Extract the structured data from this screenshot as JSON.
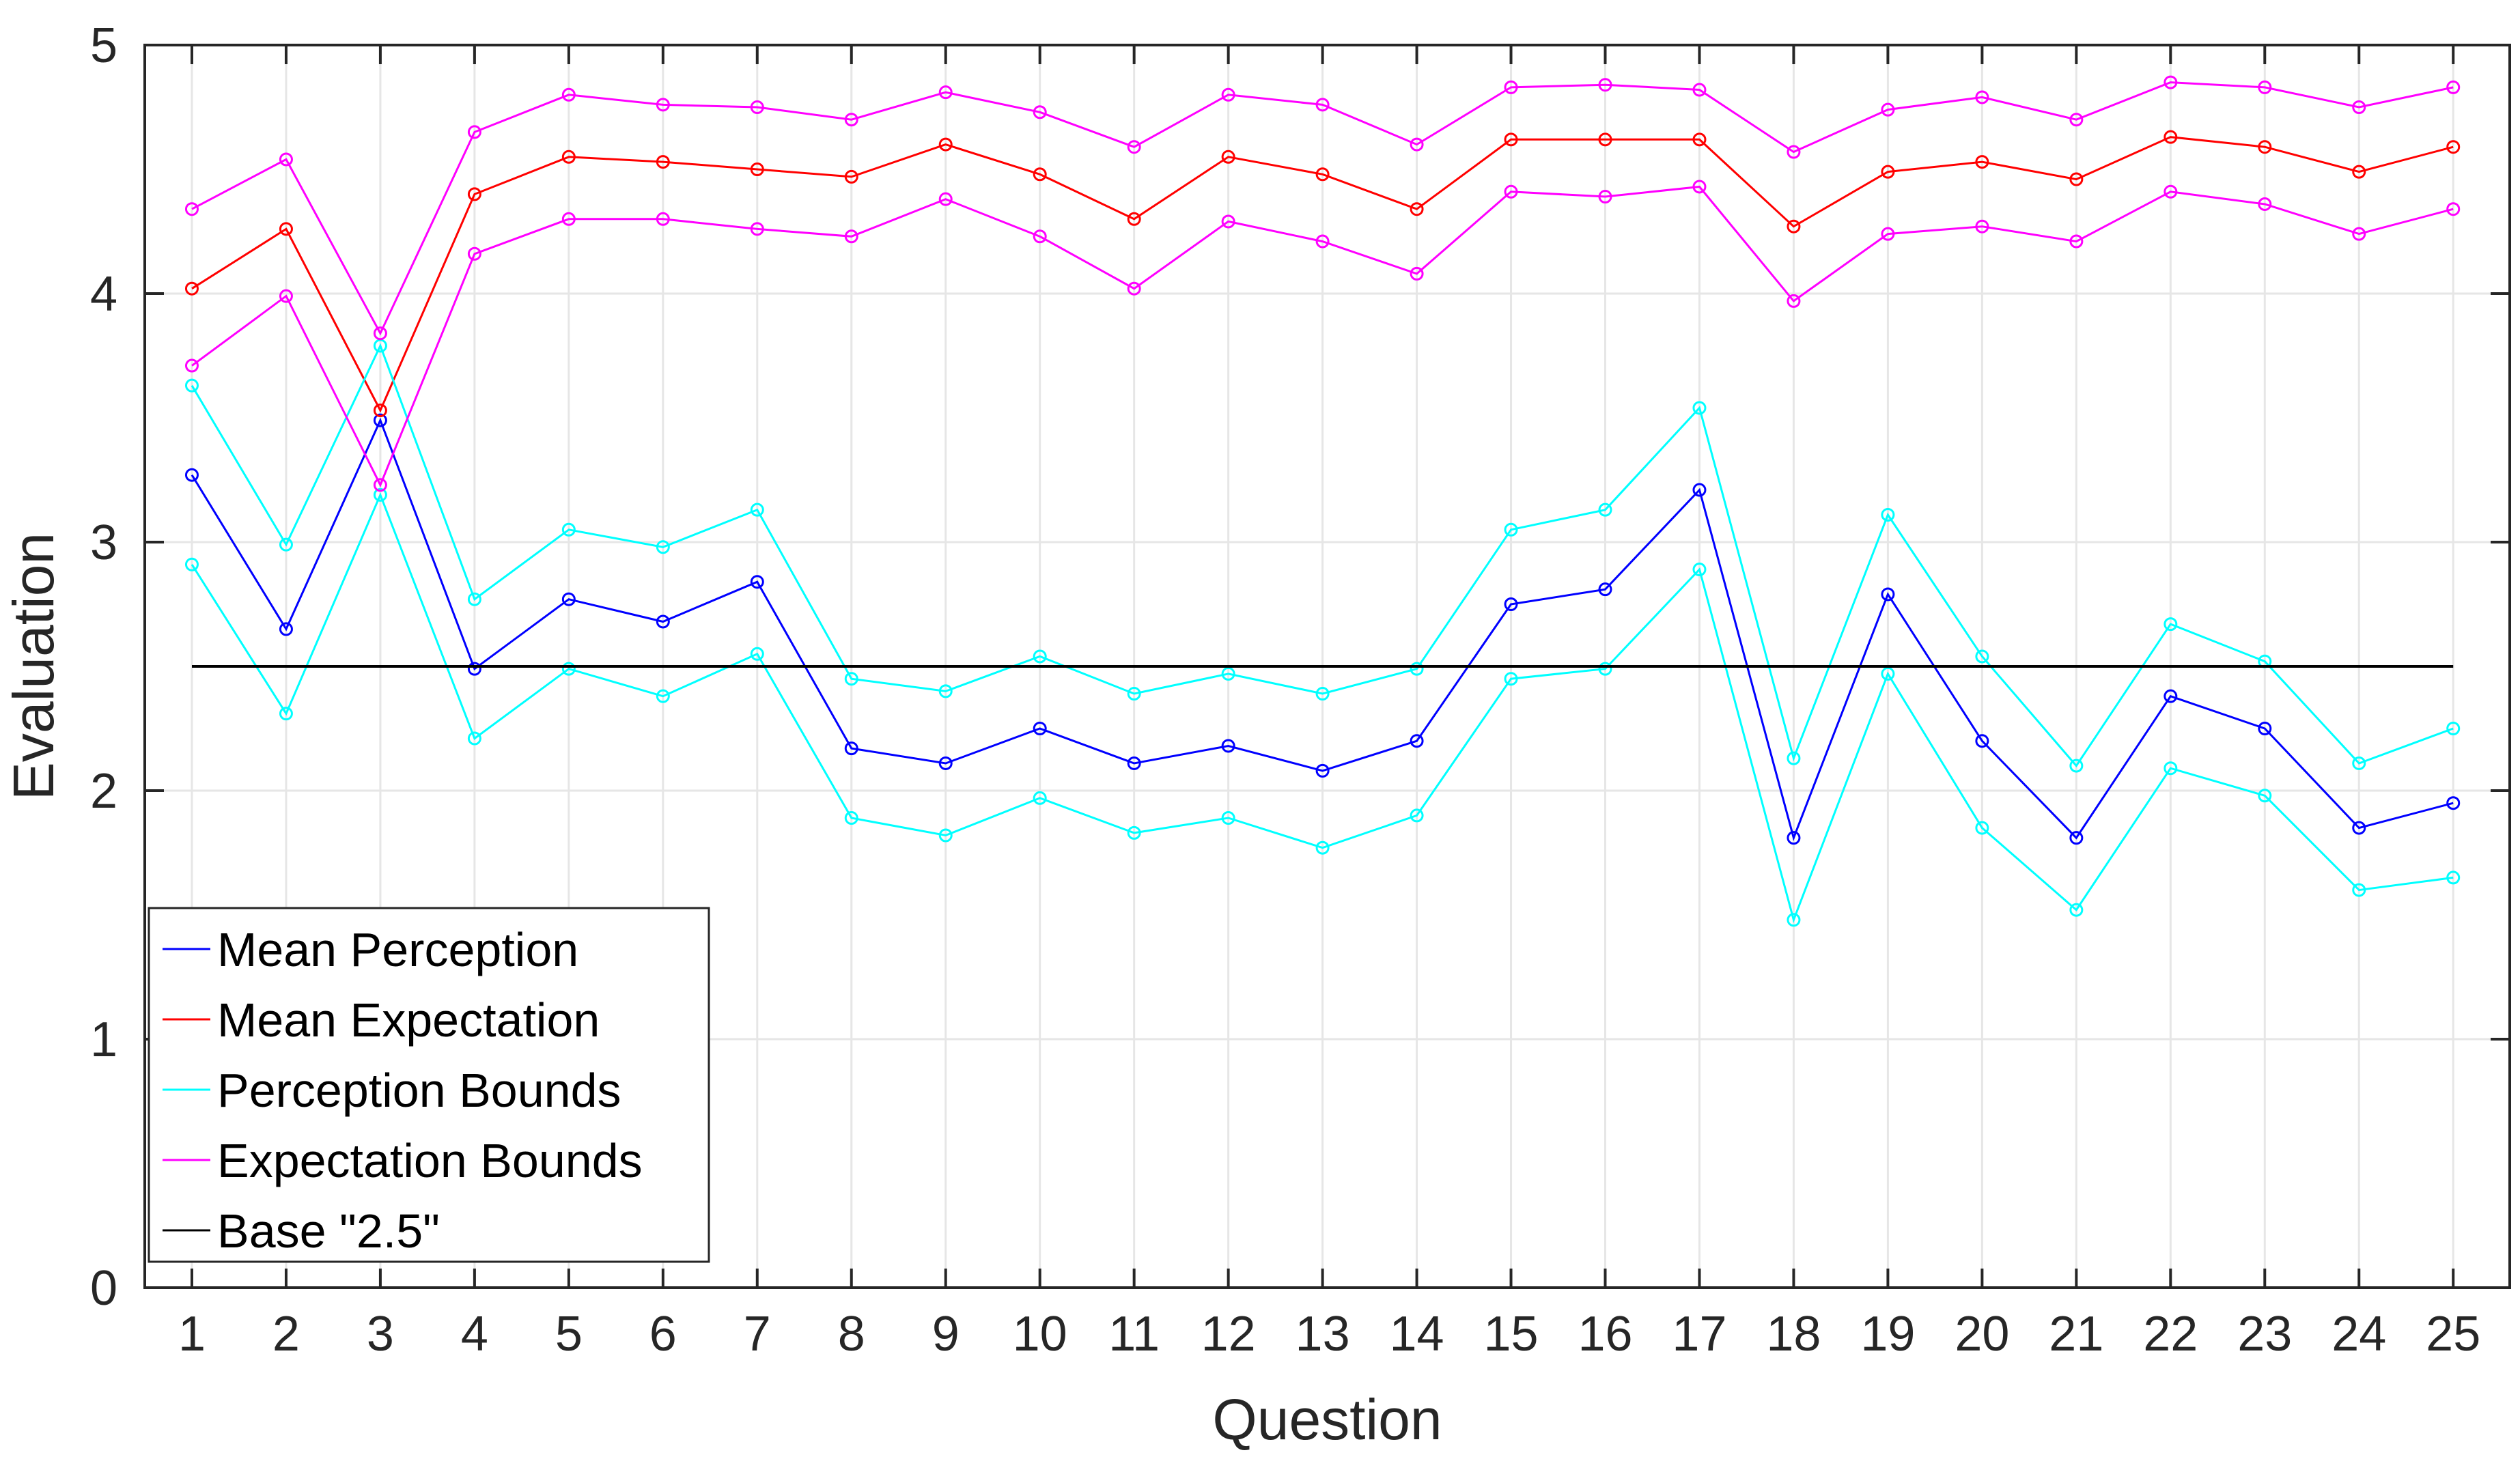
{
  "chart_data": {
    "type": "line",
    "title": "",
    "xlabel": "Question",
    "ylabel": "Evaluation",
    "xlim": [
      0.5,
      25.6
    ],
    "ylim": [
      0,
      5
    ],
    "grid": true,
    "legend_position": "bottom-left",
    "x": [
      1,
      2,
      3,
      4,
      5,
      6,
      7,
      8,
      9,
      10,
      11,
      12,
      13,
      14,
      15,
      16,
      17,
      18,
      19,
      20,
      21,
      22,
      23,
      24,
      25
    ],
    "x_tick_labels": [
      "1",
      "2",
      "3",
      "4",
      "5",
      "6",
      "7",
      "8",
      "9",
      "10",
      "11",
      "12",
      "13",
      "14",
      "15",
      "16",
      "17",
      "18",
      "19",
      "20",
      "21",
      "22",
      "23",
      "24",
      "25"
    ],
    "y_ticks": [
      0,
      1,
      2,
      3,
      4,
      5
    ],
    "y_tick_labels": [
      "0",
      "1",
      "2",
      "3",
      "4",
      "5"
    ],
    "series": [
      {
        "name": "Mean Perception",
        "color": "#0000ff",
        "markers": true,
        "values": [
          3.27,
          2.65,
          3.49,
          2.49,
          2.77,
          2.68,
          2.84,
          2.17,
          2.11,
          2.25,
          2.11,
          2.18,
          2.08,
          2.2,
          2.75,
          2.81,
          3.21,
          1.81,
          2.79,
          2.2,
          1.81,
          2.38,
          2.25,
          1.85,
          1.95
        ]
      },
      {
        "name": "Mean Expectation",
        "color": "#ff0000",
        "markers": true,
        "values": [
          4.02,
          4.26,
          3.53,
          4.4,
          4.55,
          4.53,
          4.5,
          4.47,
          4.6,
          4.48,
          4.3,
          4.55,
          4.48,
          4.34,
          4.62,
          4.62,
          4.62,
          4.27,
          4.49,
          4.53,
          4.46,
          4.63,
          4.59,
          4.49,
          4.59
        ]
      },
      {
        "name": "Perception Bounds",
        "color": "#00ffff",
        "markers": true,
        "values": [
          3.63,
          2.99,
          3.79,
          2.77,
          3.05,
          2.98,
          3.13,
          2.45,
          2.4,
          2.54,
          2.39,
          2.47,
          2.39,
          2.49,
          3.05,
          3.13,
          3.54,
          2.13,
          3.11,
          2.54,
          2.1,
          2.67,
          2.52,
          2.11,
          2.25
        ]
      },
      {
        "name": "Perception Bounds (lower)",
        "legend": false,
        "color": "#00ffff",
        "markers": true,
        "values": [
          2.91,
          2.31,
          3.19,
          2.21,
          2.49,
          2.38,
          2.55,
          1.89,
          1.82,
          1.97,
          1.83,
          1.89,
          1.77,
          1.9,
          2.45,
          2.49,
          2.89,
          1.48,
          2.47,
          1.85,
          1.52,
          2.09,
          1.98,
          1.6,
          1.65
        ]
      },
      {
        "name": "Expectation Bounds",
        "color": "#ff00ff",
        "markers": true,
        "values": [
          4.34,
          4.54,
          3.84,
          4.65,
          4.8,
          4.76,
          4.75,
          4.7,
          4.81,
          4.73,
          4.59,
          4.8,
          4.76,
          4.6,
          4.83,
          4.84,
          4.82,
          4.57,
          4.74,
          4.79,
          4.7,
          4.85,
          4.83,
          4.75,
          4.83
        ]
      },
      {
        "name": "Expectation Bounds (lower)",
        "legend": false,
        "color": "#ff00ff",
        "markers": true,
        "values": [
          3.71,
          3.99,
          3.23,
          4.16,
          4.3,
          4.3,
          4.26,
          4.23,
          4.38,
          4.23,
          4.02,
          4.29,
          4.21,
          4.08,
          4.41,
          4.39,
          4.43,
          3.97,
          4.24,
          4.27,
          4.21,
          4.41,
          4.36,
          4.24,
          4.34
        ]
      },
      {
        "name": "Base \"2.5\"",
        "color": "#000000",
        "markers": false,
        "values": [
          2.5,
          2.5,
          2.5,
          2.5,
          2.5,
          2.5,
          2.5,
          2.5,
          2.5,
          2.5,
          2.5,
          2.5,
          2.5,
          2.5,
          2.5,
          2.5,
          2.5,
          2.5,
          2.5,
          2.5,
          2.5,
          2.5,
          2.5,
          2.5,
          2.5
        ]
      }
    ],
    "legend_entries": [
      {
        "label": "Mean Perception",
        "color": "#0000ff"
      },
      {
        "label": "Mean Expectation",
        "color": "#ff0000"
      },
      {
        "label": "Perception Bounds",
        "color": "#00ffff"
      },
      {
        "label": "Expectation Bounds",
        "color": "#ff00ff"
      },
      {
        "label": "Base \"2.5\"",
        "color": "#000000"
      }
    ]
  }
}
